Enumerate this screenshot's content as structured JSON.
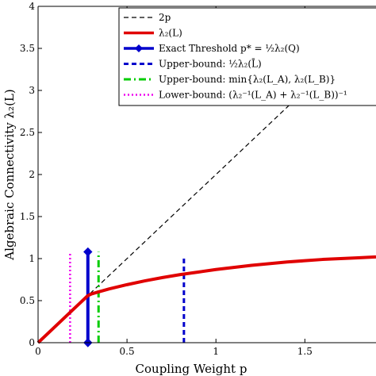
{
  "chart_data": {
    "type": "line",
    "xlabel": "Coupling Weight p",
    "ylabel": "Algebraic Connectivity λ₂(L)",
    "xlim": [
      0,
      1.9
    ],
    "ylim": [
      0,
      4
    ],
    "xticks": [
      {
        "value": 0,
        "label": "0"
      },
      {
        "value": 0.5,
        "label": "0.5"
      },
      {
        "value": 1,
        "label": "1"
      },
      {
        "value": 1.5,
        "label": "1.5"
      }
    ],
    "yticks": [
      {
        "value": 0,
        "label": "0"
      },
      {
        "value": 0.5,
        "label": "0.5"
      },
      {
        "value": 1,
        "label": "1"
      },
      {
        "value": 1.5,
        "label": "1.5"
      },
      {
        "value": 2,
        "label": "2"
      },
      {
        "value": 2.5,
        "label": "2.5"
      },
      {
        "value": 3,
        "label": "3"
      },
      {
        "value": 3.5,
        "label": "3.5"
      },
      {
        "value": 4,
        "label": "4"
      }
    ],
    "grid": false,
    "legend_position": "top-right",
    "series": [
      {
        "name": "2p",
        "style": "dashed",
        "color": "#000000",
        "x": [
          0,
          1.9
        ],
        "y": [
          0,
          3.8
        ]
      },
      {
        "name": "λ₂(L)",
        "style": "solid",
        "color": "#e00000",
        "x": [
          0,
          0.05,
          0.1,
          0.15,
          0.2,
          0.25,
          0.28,
          0.3,
          0.35,
          0.4,
          0.5,
          0.6,
          0.7,
          0.8,
          0.9,
          1.0,
          1.1,
          1.2,
          1.3,
          1.4,
          1.5,
          1.6,
          1.7,
          1.8,
          1.9
        ],
        "y": [
          0,
          0.1,
          0.2,
          0.3,
          0.4,
          0.5,
          0.56,
          0.58,
          0.61,
          0.64,
          0.69,
          0.735,
          0.775,
          0.81,
          0.84,
          0.87,
          0.895,
          0.92,
          0.94,
          0.96,
          0.975,
          0.99,
          1.0,
          1.01,
          1.02
        ]
      },
      {
        "name": "Exact Threshold p* = ½λ₂(Q)",
        "style": "solid-diamond",
        "color": "#0000cc",
        "x": [
          0.28,
          0.28
        ],
        "y": [
          0,
          1.08
        ]
      },
      {
        "name": "Upper-bound: ½λ₂(L̄)",
        "style": "dashed",
        "color": "#0000cc",
        "x": [
          0.82,
          0.82
        ],
        "y": [
          0,
          1.02
        ]
      },
      {
        "name": "Upper-bound: min{λ₂(L_A), λ₂(L_B)}",
        "style": "dashdot",
        "color": "#00cc00",
        "x": [
          0.34,
          0.34
        ],
        "y": [
          0,
          1.08
        ]
      },
      {
        "name": "Lower-bound: (λ₂⁻¹(L_A) + λ₂⁻¹(L_B))⁻¹",
        "style": "dotted",
        "color": "#ee00ee",
        "x": [
          0.18,
          0.18
        ],
        "y": [
          0,
          1.08
        ]
      }
    ]
  }
}
